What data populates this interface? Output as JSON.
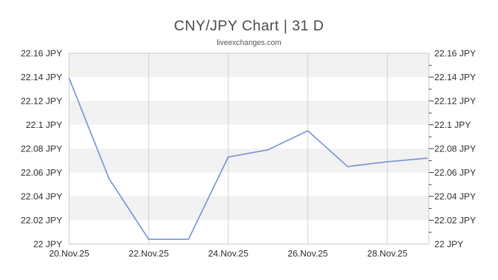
{
  "header": {
    "title": "CNY/JPY Chart | 31 D",
    "subtitle": "liveexchanges.com"
  },
  "chart_data": {
    "type": "line",
    "title": "CNY/JPY Chart | 31 D",
    "subtitle": "liveexchanges.com",
    "series": [
      {
        "name": "CNY/JPY",
        "x_days": [
          0,
          1,
          2,
          3,
          4,
          5,
          6,
          7,
          8,
          9
        ],
        "values": [
          22.139,
          22.055,
          22.004,
          22.004,
          22.073,
          22.079,
          22.095,
          22.065,
          22.069,
          22.072
        ]
      }
    ],
    "ylim": [
      22.0,
      22.16
    ],
    "y_tick_step": 0.02,
    "y_minor_tick_step": 0.01,
    "y_ticks": [
      {
        "value": 22.16,
        "label": "22.16 JPY"
      },
      {
        "value": 22.14,
        "label": "22.14 JPY"
      },
      {
        "value": 22.12,
        "label": "22.12 JPY"
      },
      {
        "value": 22.1,
        "label": "22.1 JPY"
      },
      {
        "value": 22.08,
        "label": "22.08 JPY"
      },
      {
        "value": 22.06,
        "label": "22.06 JPY"
      },
      {
        "value": 22.04,
        "label": "22.04 JPY"
      },
      {
        "value": 22.02,
        "label": "22.02 JPY"
      },
      {
        "value": 22,
        "label": "22 JPY"
      }
    ],
    "x_ticks": [
      {
        "day": 0,
        "label": "20.Nov.25"
      },
      {
        "day": 2,
        "label": "22.Nov.25"
      },
      {
        "day": 4,
        "label": "24.Nov.25"
      },
      {
        "day": 6,
        "label": "26.Nov.25"
      },
      {
        "day": 8,
        "label": "28.Nov.25"
      }
    ],
    "legend": "none",
    "grid": "vertical-only",
    "bands": "horizontal-alternating",
    "colors": {
      "line": "#7b94d6",
      "band": "#f2f2f2",
      "band_alt": "#ffffff",
      "grid": "#cccccc",
      "border": "#c6c6c6",
      "tick": "#333333",
      "axis_label": "#2f2f2f",
      "title": "#4a4a4a",
      "subtitle": "#555555"
    }
  }
}
